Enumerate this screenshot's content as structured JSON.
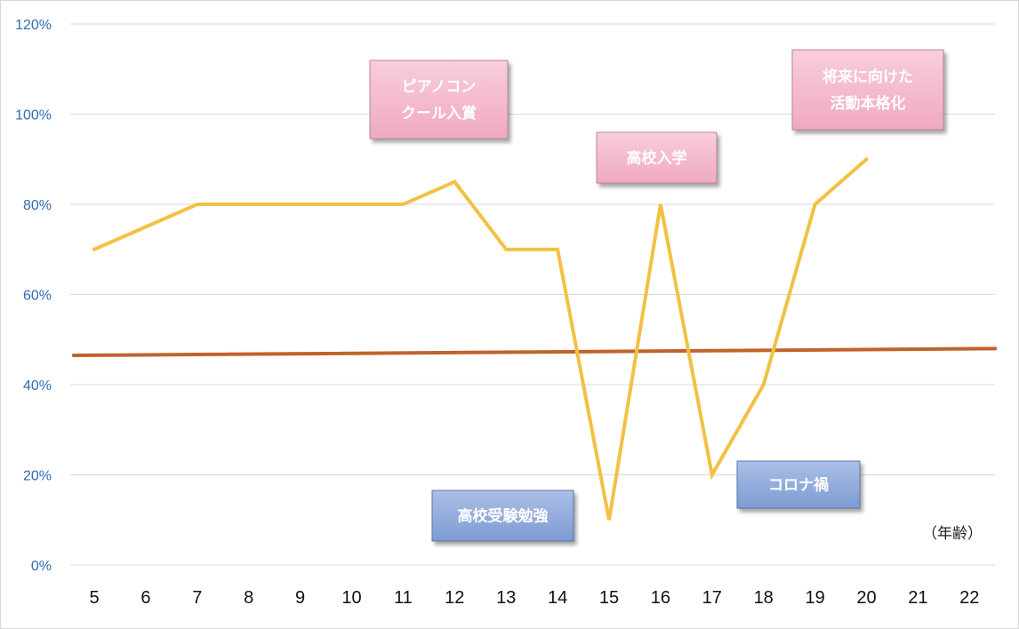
{
  "chart_data": {
    "type": "line",
    "x": [
      5,
      6,
      7,
      8,
      9,
      10,
      11,
      12,
      13,
      14,
      15,
      16,
      17,
      18,
      19,
      20,
      21,
      22
    ],
    "xlabel": "（年齢）",
    "ylim": [
      0,
      120
    ],
    "yticks": [
      "0%",
      "20%",
      "40%",
      "60%",
      "80%",
      "100%",
      "120%"
    ],
    "grid": true,
    "legend": "none",
    "series": [
      {
        "color": "#f2c144",
        "x": [
          5,
          6,
          7,
          8,
          9,
          10,
          11,
          12,
          13,
          14,
          15,
          16,
          17,
          18,
          19,
          20
        ],
        "values": [
          70,
          75,
          80,
          80,
          80,
          80,
          80,
          85,
          70,
          70,
          10,
          80,
          20,
          40,
          80,
          90
        ]
      },
      {
        "type": "trendline",
        "color": "#c0632b",
        "x": [
          4.6,
          22.5
        ],
        "values": [
          46.5,
          48
        ]
      }
    ],
    "annotations": [
      {
        "lines": [
          "ピアノコン",
          "クール入賞"
        ],
        "style": "positive",
        "color": "#f4b6cd"
      },
      {
        "lines": [
          "高校入学"
        ],
        "style": "positive",
        "color": "#f4b6cd"
      },
      {
        "lines": [
          "将来に向けた",
          "活動本格化"
        ],
        "style": "positive",
        "color": "#f4b6cd"
      },
      {
        "lines": [
          "高校受験勉強"
        ],
        "style": "negative",
        "color": "#8eaadb"
      },
      {
        "lines": [
          "コロナ禍"
        ],
        "style": "negative",
        "color": "#8eaadb"
      }
    ]
  }
}
